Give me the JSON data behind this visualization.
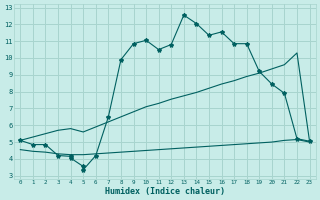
{
  "xlabel": "Humidex (Indice chaleur)",
  "bg_color": "#c8ece8",
  "grid_color": "#a8d4ce",
  "line_color": "#006060",
  "xlim": [
    -0.5,
    23.5
  ],
  "ylim": [
    2.8,
    13.2
  ],
  "yticks": [
    3,
    4,
    5,
    6,
    7,
    8,
    9,
    10,
    11,
    12,
    13
  ],
  "xticks": [
    0,
    1,
    2,
    3,
    4,
    5,
    6,
    7,
    8,
    9,
    10,
    11,
    12,
    13,
    14,
    15,
    16,
    17,
    18,
    19,
    20,
    21,
    22,
    23
  ],
  "line1_x": [
    0,
    1,
    2,
    3,
    4,
    4,
    5,
    5,
    6,
    7,
    8,
    9,
    10,
    11,
    12,
    13,
    14,
    15,
    16,
    17,
    18,
    19,
    20,
    21,
    22,
    23
  ],
  "line1_y": [
    5.1,
    4.85,
    4.85,
    4.2,
    4.15,
    4.05,
    3.55,
    3.35,
    4.2,
    6.5,
    9.9,
    10.85,
    11.05,
    10.5,
    10.8,
    12.55,
    12.05,
    11.35,
    11.55,
    10.85,
    10.85,
    9.2,
    8.45,
    7.9,
    5.2,
    5.05
  ],
  "line2_x": [
    0,
    1,
    2,
    3,
    4,
    5,
    6,
    7,
    8,
    9,
    10,
    11,
    12,
    13,
    14,
    15,
    16,
    17,
    18,
    19,
    20,
    21,
    22,
    23
  ],
  "line2_y": [
    5.1,
    5.3,
    5.5,
    5.7,
    5.8,
    5.6,
    5.9,
    6.2,
    6.5,
    6.8,
    7.1,
    7.3,
    7.55,
    7.75,
    7.95,
    8.2,
    8.45,
    8.65,
    8.9,
    9.1,
    9.35,
    9.6,
    10.3,
    5.05
  ],
  "line3_x": [
    0,
    1,
    2,
    3,
    4,
    5,
    6,
    7,
    8,
    9,
    10,
    11,
    12,
    13,
    14,
    15,
    16,
    17,
    18,
    19,
    20,
    21,
    22,
    23
  ],
  "line3_y": [
    4.55,
    4.45,
    4.4,
    4.3,
    4.25,
    4.25,
    4.3,
    4.35,
    4.4,
    4.45,
    4.5,
    4.55,
    4.6,
    4.65,
    4.7,
    4.75,
    4.8,
    4.85,
    4.9,
    4.95,
    5.0,
    5.1,
    5.15,
    5.0
  ]
}
